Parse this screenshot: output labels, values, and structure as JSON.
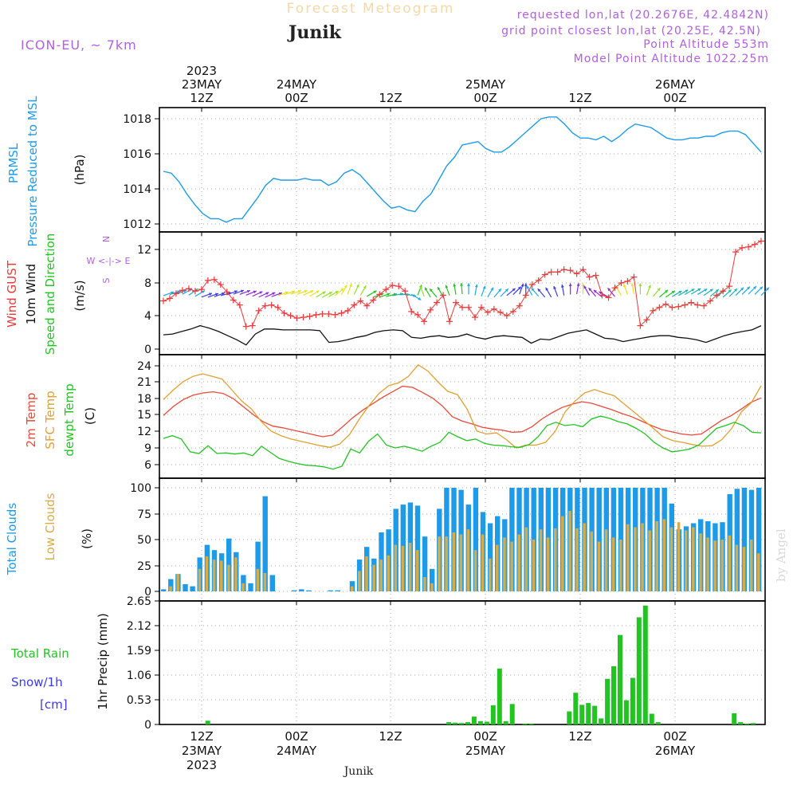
{
  "header": {
    "title_top": "Forecast Meteogram",
    "location": "Junik",
    "model": "ICON-EU, ~ 7km",
    "requested": "requested lon,lat (20.2676E, 42.4842N)",
    "grid_point": "grid point closest lon,lat (20.25E, 42.5N)",
    "point_alt": "Point Altitude 553m",
    "model_alt": "Model Point Altitude 1022.25m",
    "footer": "Junik",
    "watermark": "by Angel"
  },
  "colors": {
    "pressure": "#1e9be8",
    "gust": "#e83a3a",
    "wind": "#111111",
    "t2m": "#e84a3a",
    "sfc": "#e0a030",
    "dewpt": "#22c422",
    "total_cloud": "#1e9be8",
    "low_cloud": "#d4ad4a",
    "rain": "#22c422",
    "snow": "#3a3ae8",
    "purple": "#b060e0",
    "grid": "#aaaaaa"
  },
  "time_axis": {
    "start_hour": 1,
    "hours": 64,
    "top_labels": [
      {
        "h": 5,
        "lines": [
          "2023",
          "23MAY",
          "12Z"
        ]
      },
      {
        "h": 15,
        "lines": [
          "24MAY",
          "00Z"
        ]
      },
      {
        "h": 25,
        "lines": [
          "12Z"
        ]
      },
      {
        "h": 35,
        "lines": [
          "25MAY",
          "00Z"
        ]
      },
      {
        "h": 45,
        "lines": [
          "12Z"
        ]
      },
      {
        "h": 55,
        "lines": [
          "26MAY",
          "00Z"
        ]
      }
    ],
    "bottom_labels": [
      {
        "h": 5,
        "lines": [
          "12Z",
          "23MAY",
          "2023"
        ]
      },
      {
        "h": 15,
        "lines": [
          "00Z",
          "24MAY"
        ]
      },
      {
        "h": 25,
        "lines": [
          "12Z"
        ]
      },
      {
        "h": 35,
        "lines": [
          "00Z",
          "25MAY"
        ]
      },
      {
        "h": 45,
        "lines": [
          "12Z"
        ]
      },
      {
        "h": 55,
        "lines": [
          "00Z",
          "26MAY"
        ]
      }
    ]
  },
  "chart_data": [
    {
      "type": "line",
      "panel": "pressure",
      "ylabel_lines": [
        "PRMSL",
        "Pressure Reduced to MSL"
      ],
      "unit": "(hPa)",
      "ylim": [
        1011.5,
        1018.8
      ],
      "yticks": [
        "1012",
        "1014",
        "1016",
        "1018"
      ],
      "series": [
        {
          "values": [
            1015.0,
            1014.9,
            1014.4,
            1013.7,
            1013.1,
            1012.6,
            1012.3,
            1012.3,
            1012.1,
            1012.3,
            1012.3,
            1012.9,
            1013.5,
            1014.2,
            1014.6,
            1014.5,
            1014.5,
            1014.5,
            1014.6,
            1014.5,
            1014.5,
            1014.2,
            1014.4,
            1014.9,
            1015.1,
            1014.8,
            1014.3,
            1013.8,
            1013.3,
            1012.9,
            1013.0,
            1012.8,
            1012.7,
            1013.3,
            1013.7,
            1014.5,
            1015.3,
            1015.8,
            1016.5,
            1016.6,
            1016.7,
            1016.3,
            1016.1,
            1016.1,
            1016.4,
            1016.8,
            1017.2,
            1017.6,
            1018.0,
            1018.1,
            1018.1,
            1017.7,
            1017.2,
            1016.9,
            1016.9,
            1016.8,
            1017.0,
            1016.7,
            1017.0,
            1017.4,
            1017.7,
            1017.6,
            1017.5,
            1017.2,
            1016.9,
            1016.8,
            1016.8,
            1016.9,
            1016.9,
            1017.0,
            1017.0,
            1017.2,
            1017.3,
            1017.3,
            1017.1,
            1016.6,
            1016.1
          ]
        }
      ]
    },
    {
      "type": "line",
      "panel": "wind",
      "ylabel_lines": [
        "Wind GUST",
        "10m Wind",
        "Speed and Direction"
      ],
      "unit": "(m/s)",
      "ylim": [
        -0.5,
        14.2
      ],
      "yticks": [
        "0",
        "4",
        "8",
        "12"
      ],
      "compass": [
        "N",
        "W <-|-> E",
        "S"
      ],
      "series": [
        {
          "name": "Wind GUST",
          "values": [
            5.8,
            6.1,
            6.7,
            7.1,
            7.3,
            7.0,
            7.2,
            8.3,
            8.4,
            7.8,
            6.9,
            5.9,
            5.3,
            2.7,
            2.8,
            4.6,
            5.2,
            5.3,
            5.0,
            4.3,
            4.0,
            3.7,
            3.8,
            3.9,
            4.1,
            4.2,
            4.2,
            4.1,
            4.3,
            4.6,
            5.3,
            5.8,
            5.2,
            5.9,
            6.6,
            7.2,
            7.7,
            7.6,
            7.0,
            4.5,
            4.1,
            3.3,
            4.7,
            5.6,
            6.5,
            3.3,
            5.6,
            5.0,
            5.0,
            3.8,
            5.0,
            4.4,
            4.8,
            4.4,
            4.0,
            4.5,
            5.2,
            6.5,
            7.8,
            8.3,
            9.0,
            9.3,
            9.3,
            9.6,
            9.5,
            9.1,
            9.6,
            8.7,
            8.9,
            6.5,
            6.2,
            7.4,
            8.0,
            8.2,
            8.7,
            2.8,
            3.5,
            4.6,
            5.0,
            5.4,
            5.0,
            5.1,
            5.3,
            5.6,
            5.3,
            5.2,
            5.8,
            6.5,
            7.0,
            7.6,
            11.7,
            12.2,
            12.3,
            12.6,
            13.0
          ]
        },
        {
          "name": "10m Wind",
          "values": [
            1.7,
            1.8,
            2.1,
            2.4,
            2.8,
            2.5,
            2.1,
            1.6,
            1.1,
            0.5,
            1.8,
            2.4,
            2.4,
            2.3,
            2.3,
            2.3,
            2.3,
            2.2,
            0.8,
            0.9,
            1.1,
            1.4,
            1.6,
            2.0,
            2.2,
            2.3,
            2.2,
            1.4,
            1.3,
            1.5,
            1.6,
            1.4,
            1.5,
            1.8,
            1.4,
            1.2,
            1.5,
            1.6,
            1.5,
            1.4,
            0.7,
            1.2,
            1.1,
            1.5,
            1.9,
            2.1,
            2.3,
            1.8,
            1.3,
            1.2,
            0.9,
            1.1,
            1.3,
            1.5,
            1.6,
            1.6,
            1.4,
            1.3,
            1.1,
            0.8,
            1.2,
            1.6,
            1.9,
            2.1,
            2.3,
            2.8
          ]
        },
        {
          "name": "wind_direction_deg",
          "values": [
            250,
            250,
            250,
            240,
            235,
            240,
            250,
            250,
            250,
            255,
            250,
            250,
            250,
            248,
            245,
            245,
            245,
            250,
            250,
            252,
            252,
            250,
            245,
            240,
            240,
            242,
            240,
            230,
            210,
            200,
            205,
            210,
            240,
            250,
            250,
            255,
            260,
            270,
            280,
            300,
            200,
            160,
            150,
            140,
            150,
            160,
            170,
            175,
            180,
            190,
            200,
            210,
            220,
            225,
            230,
            225,
            200,
            180,
            150,
            140,
            140,
            150,
            160,
            170,
            180,
            190,
            180,
            150,
            140,
            130,
            120,
            140,
            150,
            160,
            170,
            180,
            200,
            220,
            230,
            235,
            240,
            240,
            240,
            240,
            240,
            235,
            230,
            228,
            228,
            225,
            225,
            225,
            225,
            225,
            225
          ]
        }
      ]
    },
    {
      "type": "line",
      "panel": "temperature",
      "ylabel_lines": [
        "2m Temp",
        "SFC Temp",
        "dewpt Temp"
      ],
      "unit": "(C)",
      "ylim": [
        4.4,
        25.3
      ],
      "yticks": [
        "6",
        "9",
        "12",
        "15",
        "18",
        "21",
        "24"
      ],
      "series": [
        {
          "name": "2m Temp",
          "values": [
            14.8,
            16.5,
            17.8,
            18.6,
            19.0,
            19.2,
            18.9,
            18.0,
            16.5,
            15.0,
            13.7,
            12.9,
            12.6,
            12.2,
            11.8,
            11.4,
            11.0,
            11.3,
            12.8,
            14.4,
            15.8,
            17.0,
            18.2,
            19.2,
            20.2,
            20.0,
            19.1,
            18.1,
            16.6,
            14.6,
            13.8,
            13.3,
            12.7,
            12.4,
            12.2,
            11.8,
            11.9,
            12.8,
            14.2,
            15.3,
            16.3,
            16.9,
            17.4,
            17.1,
            16.5,
            15.9,
            15.2,
            14.6,
            13.8,
            13.0,
            12.3,
            11.9,
            11.5,
            11.3,
            11.5,
            12.7,
            13.9,
            14.8,
            16.0,
            17.3,
            18.1
          ]
        },
        {
          "name": "SFC Temp",
          "values": [
            17.8,
            19.5,
            21.0,
            22.0,
            22.5,
            22.0,
            21.5,
            19.5,
            17.5,
            16.0,
            13.7,
            12.0,
            11.2,
            10.6,
            10.2,
            9.8,
            9.4,
            9.1,
            9.7,
            11.4,
            14.2,
            16.7,
            18.9,
            20.3,
            20.8,
            22.0,
            24.2,
            23.0,
            21.0,
            19.3,
            18.7,
            16.0,
            12.0,
            11.5,
            11.7,
            10.5,
            9.0,
            9.5,
            9.5,
            10.0,
            12.0,
            15.5,
            17.5,
            19.0,
            19.6,
            19.0,
            18.5,
            17.0,
            15.5,
            14.0,
            12.5,
            11.0,
            10.3,
            10.0,
            9.6,
            9.3,
            9.4,
            10.5,
            12.5,
            15.5,
            17.2,
            20.3
          ]
        },
        {
          "name": "dewpt Temp",
          "values": [
            10.7,
            11.2,
            10.6,
            8.3,
            8.0,
            9.4,
            8.0,
            8.1,
            7.9,
            8.1,
            7.6,
            9.3,
            8.2,
            7.1,
            6.6,
            6.2,
            5.9,
            5.8,
            5.6,
            5.2,
            5.7,
            8.8,
            8.1,
            10.2,
            11.5,
            9.5,
            9.0,
            9.3,
            8.9,
            8.4,
            9.3,
            10.0,
            11.8,
            11.0,
            10.3,
            10.6,
            9.8,
            9.5,
            9.4,
            9.2,
            9.1,
            9.6,
            11.0,
            13.0,
            13.6,
            13.0,
            13.2,
            12.8,
            14.2,
            14.7,
            14.3,
            13.7,
            13.3,
            12.5,
            11.5,
            10.0,
            9.0,
            8.3,
            8.5,
            8.8,
            9.5,
            11.0,
            12.5,
            13.0,
            13.6,
            13.0,
            11.8,
            11.7
          ]
        }
      ]
    },
    {
      "type": "bar",
      "panel": "clouds",
      "ylabel_lines": [
        "Total Clouds",
        "Low Clouds"
      ],
      "unit": "(%)",
      "ylim": [
        0,
        104
      ],
      "yticks": [
        "0",
        "25",
        "50",
        "75",
        "100"
      ],
      "series": [
        {
          "name": "Total Clouds",
          "values": [
            2,
            12,
            17,
            7,
            5,
            33,
            45,
            40,
            37,
            51,
            38,
            16,
            8,
            48,
            92,
            16,
            0,
            0,
            1,
            2,
            1,
            0,
            0,
            1,
            1,
            0,
            10,
            31,
            43,
            32,
            57,
            60,
            80,
            84,
            86,
            83,
            53,
            22,
            80,
            100,
            100,
            98,
            84,
            100,
            77,
            66,
            73,
            70,
            100,
            100,
            100,
            100,
            100,
            100,
            100,
            100,
            100,
            100,
            100,
            100,
            100,
            100,
            100,
            100,
            100,
            100,
            100,
            100,
            100,
            100,
            85,
            60,
            63,
            66,
            70,
            68,
            66,
            67,
            94,
            99,
            100,
            98,
            100
          ]
        },
        {
          "name": "Low Clouds",
          "values": [
            0,
            5,
            17,
            0,
            0,
            22,
            34,
            31,
            30,
            26,
            33,
            8,
            0,
            22,
            18,
            0,
            0,
            0,
            0,
            0,
            0,
            0,
            0,
            0,
            0,
            0,
            5,
            20,
            34,
            26,
            31,
            35,
            45,
            44,
            47,
            40,
            14,
            8,
            53,
            53,
            57,
            55,
            60,
            40,
            55,
            32,
            45,
            52,
            48,
            55,
            62,
            50,
            60,
            52,
            61,
            73,
            78,
            61,
            66,
            58,
            48,
            60,
            52,
            50,
            65,
            62,
            66,
            59,
            68,
            70,
            62,
            67,
            59,
            62,
            56,
            52,
            49,
            50,
            54,
            45,
            43,
            50,
            37
          ]
        }
      ]
    },
    {
      "type": "bar",
      "panel": "precip",
      "ylabel_lines": [
        "Total   Rain",
        "Snow/1h",
        "[cm]"
      ],
      "unit": "1hr Precip (mm)",
      "ylim": [
        0,
        2.65
      ],
      "yticks": [
        "0",
        "0.53",
        "1.06",
        "1.59",
        "2.12",
        "2.65"
      ],
      "series": [
        {
          "name": "Total Rain",
          "values": [
            0,
            0,
            0,
            0,
            0,
            0,
            0,
            0.08,
            0,
            0,
            0,
            0,
            0,
            0,
            0,
            0,
            0,
            0,
            0,
            0,
            0,
            0,
            0,
            0,
            0,
            0,
            0,
            0,
            0,
            0,
            0,
            0,
            0,
            0,
            0,
            0,
            0,
            0,
            0,
            0,
            0,
            0,
            0,
            0,
            0,
            0.05,
            0.04,
            0.03,
            0.05,
            0.17,
            0.07,
            0.06,
            0.41,
            1.2,
            0.07,
            0.44,
            0,
            0.02,
            0.02,
            0,
            0,
            0,
            0,
            0,
            0.28,
            0.68,
            0.42,
            0.46,
            0.4,
            0.13,
            0.98,
            1.25,
            1.92,
            0.52,
            1.0,
            2.3,
            2.55,
            0.23,
            0.05,
            0,
            0,
            0,
            0,
            0,
            0,
            0,
            0,
            0,
            0,
            0,
            0.24,
            0.05,
            0.02,
            0.03,
            0
          ]
        },
        {
          "name": "Snow/1h",
          "values": [
            0,
            0,
            0,
            0,
            0,
            0,
            0,
            0,
            0,
            0,
            0,
            0,
            0,
            0,
            0,
            0,
            0,
            0,
            0,
            0,
            0,
            0,
            0,
            0,
            0,
            0,
            0,
            0,
            0,
            0,
            0,
            0,
            0,
            0,
            0,
            0,
            0,
            0,
            0,
            0,
            0,
            0,
            0,
            0,
            0,
            0,
            0,
            0,
            0,
            0,
            0,
            0,
            0,
            0,
            0,
            0,
            0,
            0,
            0,
            0,
            0,
            0,
            0,
            0,
            0,
            0,
            0,
            0,
            0,
            0,
            0,
            0,
            0,
            0,
            0,
            0,
            0,
            0,
            0,
            0,
            0,
            0,
            0,
            0,
            0,
            0,
            0,
            0,
            0,
            0,
            0,
            0,
            0,
            0,
            0
          ]
        }
      ]
    }
  ]
}
